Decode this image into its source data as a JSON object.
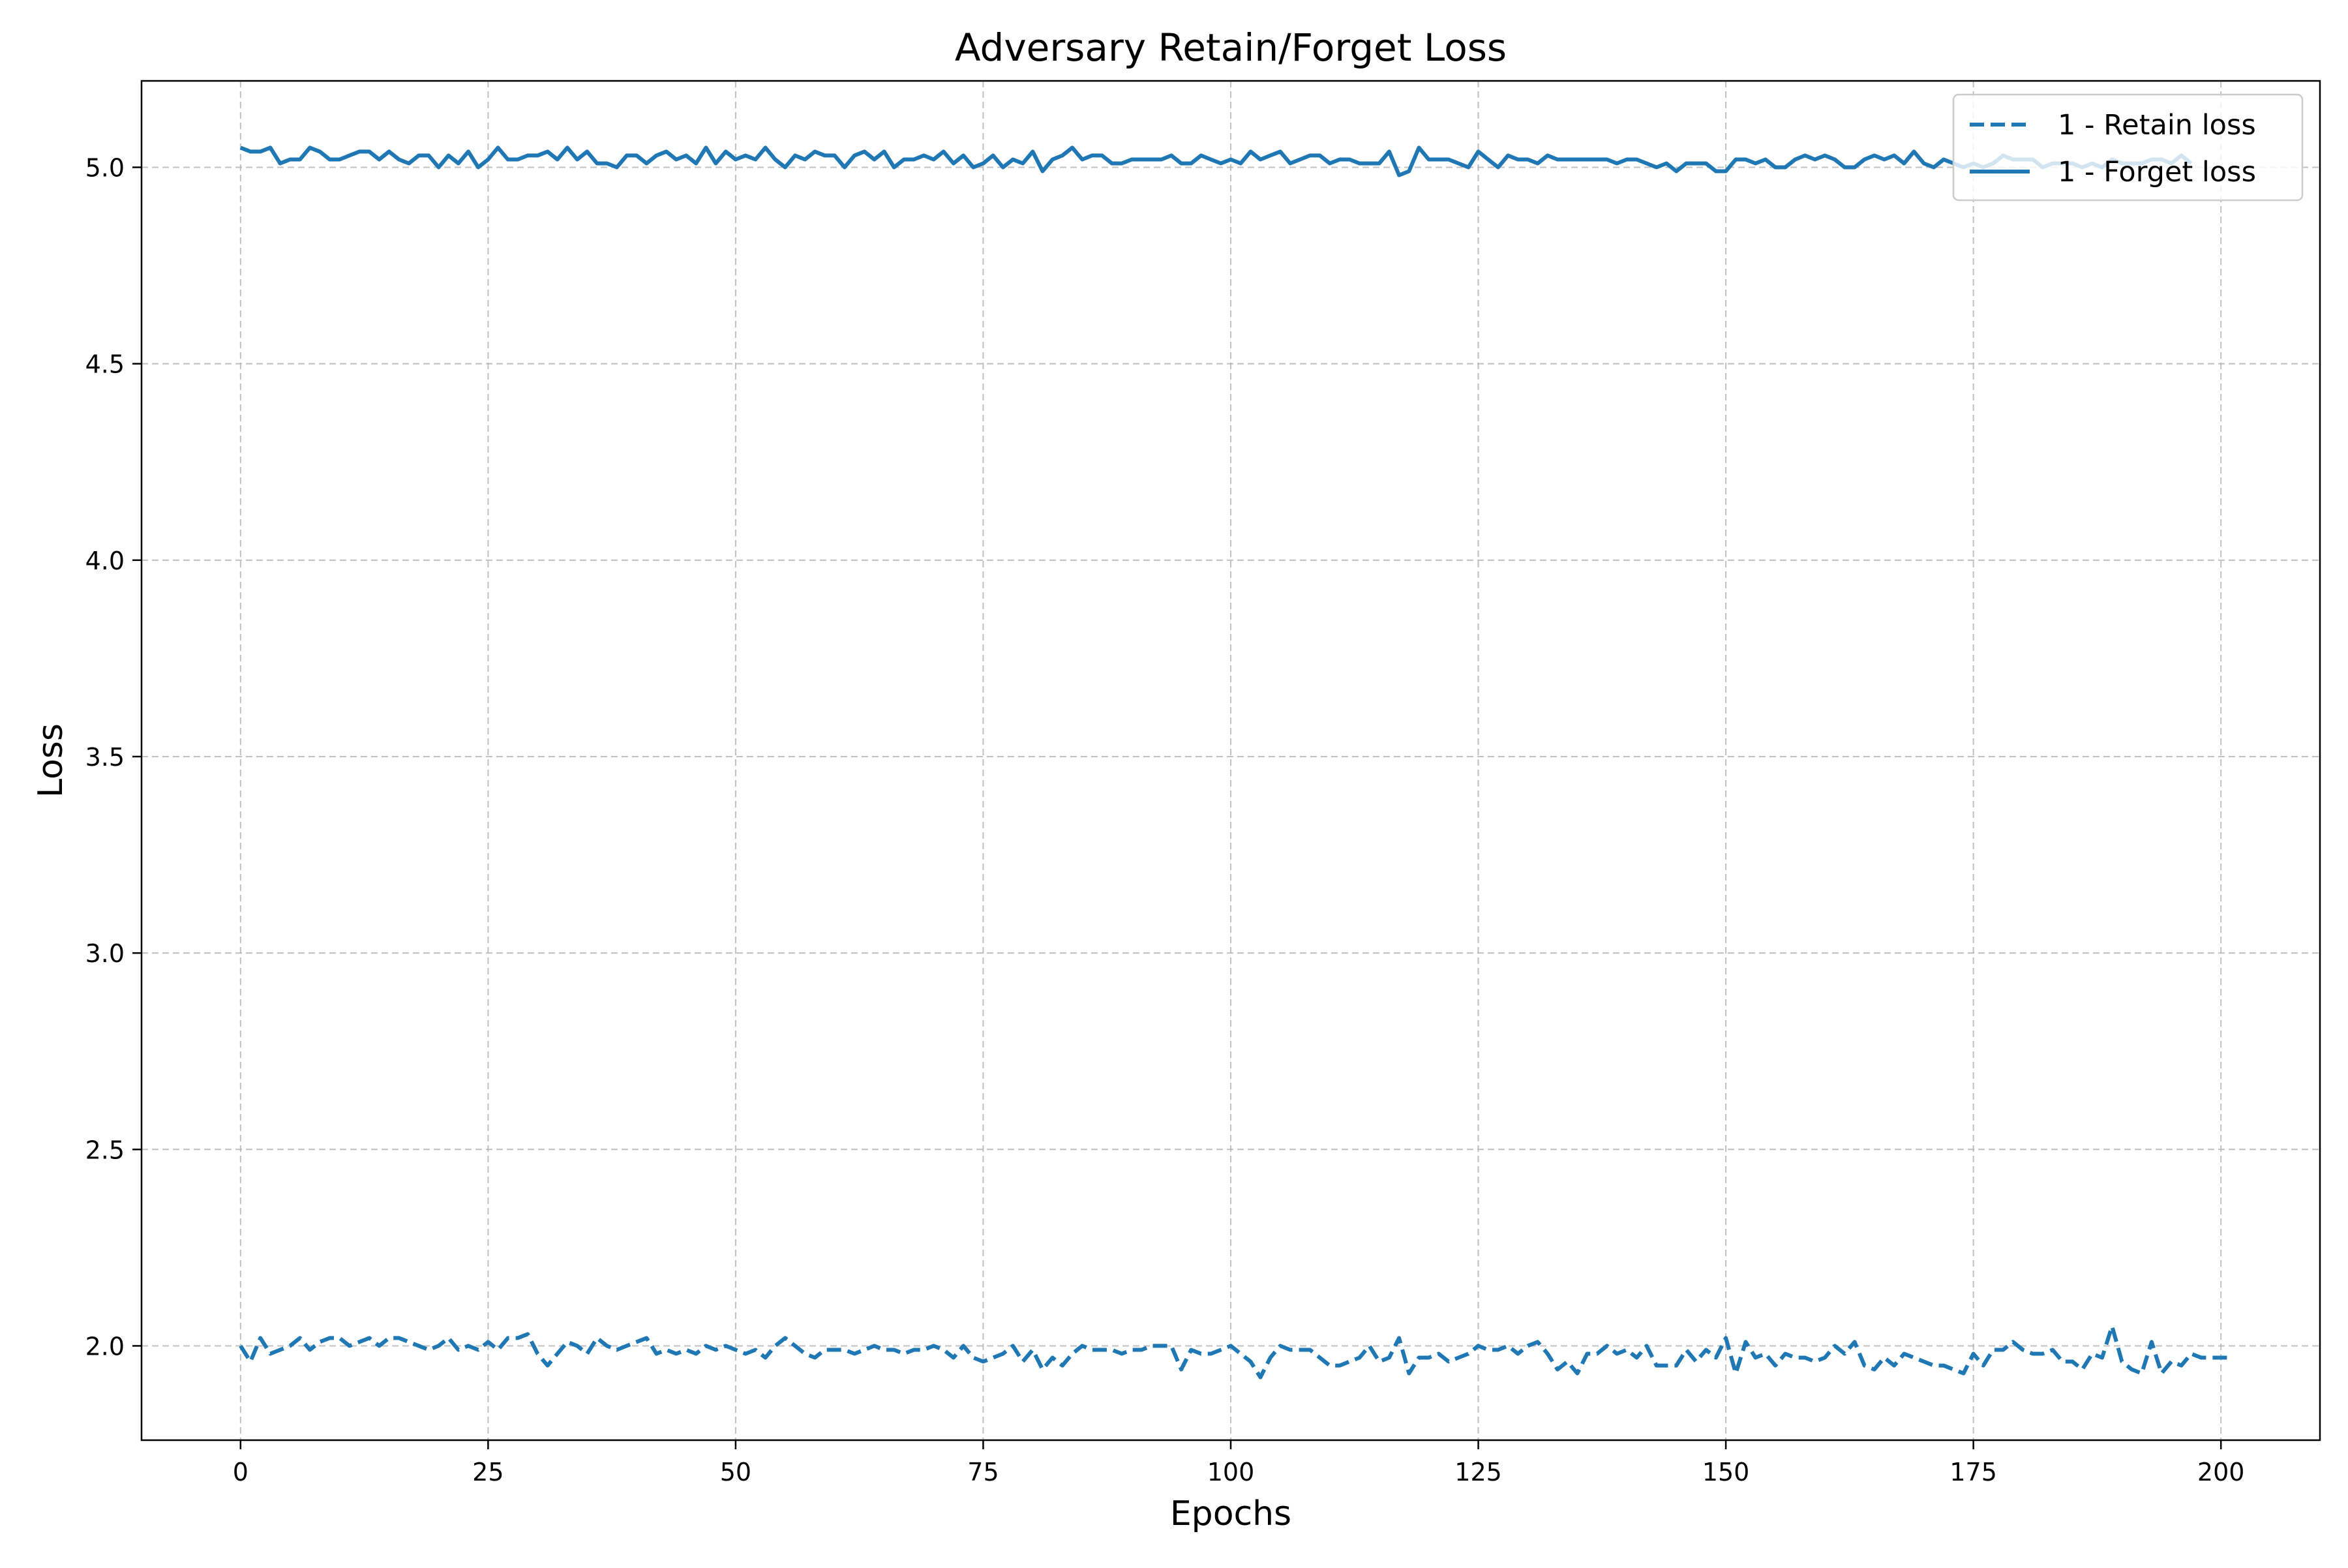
{
  "chart_data": {
    "type": "line",
    "title": "Adversary Retain/Forget Loss",
    "xlabel": "Epochs",
    "ylabel": "Loss",
    "xlim": [
      -10,
      210
    ],
    "ylim": [
      1.76,
      5.22
    ],
    "xticks": [
      0,
      25,
      50,
      75,
      100,
      125,
      150,
      175,
      200
    ],
    "yticks": [
      2.0,
      2.5,
      3.0,
      3.5,
      4.0,
      4.5,
      5.0
    ],
    "ytick_labels": [
      "2.0",
      "2.5",
      "3.0",
      "3.5",
      "4.0",
      "4.5",
      "5.0"
    ],
    "grid": true,
    "legend_position": "top-right",
    "color": "#1f77b4",
    "series": [
      {
        "name": "1 - Retain loss",
        "style": "dashed",
        "x_start": 0,
        "x_step": 1,
        "values": [
          2.0,
          1.96,
          2.02,
          1.98,
          1.99,
          2.0,
          2.02,
          1.99,
          2.01,
          2.02,
          2.02,
          2.0,
          2.01,
          2.02,
          2.0,
          2.02,
          2.02,
          2.01,
          2.0,
          1.99,
          2.0,
          2.02,
          1.99,
          2.0,
          1.99,
          2.01,
          1.99,
          2.02,
          2.02,
          2.03,
          1.98,
          1.95,
          1.98,
          2.01,
          2.0,
          1.98,
          2.02,
          2.0,
          1.99,
          2.0,
          2.01,
          2.02,
          1.98,
          1.99,
          1.98,
          1.99,
          1.98,
          2.0,
          1.99,
          2.0,
          1.99,
          1.98,
          1.99,
          1.97,
          2.0,
          2.02,
          2.0,
          1.98,
          1.97,
          1.99,
          1.99,
          1.99,
          1.98,
          1.99,
          2.0,
          1.99,
          1.99,
          1.98,
          1.99,
          1.99,
          2.0,
          1.99,
          1.97,
          2.0,
          1.97,
          1.96,
          1.97,
          1.98,
          2.0,
          1.96,
          1.99,
          1.94,
          1.97,
          1.95,
          1.98,
          2.0,
          1.99,
          1.99,
          1.99,
          1.98,
          1.99,
          1.99,
          2.0,
          2.0,
          2.0,
          1.94,
          1.99,
          1.98,
          1.98,
          1.99,
          2.0,
          1.98,
          1.96,
          1.92,
          1.97,
          2.0,
          1.99,
          1.99,
          1.99,
          1.97,
          1.95,
          1.95,
          1.96,
          1.97,
          2.0,
          1.96,
          1.97,
          2.02,
          1.93,
          1.97,
          1.97,
          1.98,
          1.96,
          1.97,
          1.98,
          2.0,
          1.99,
          1.99,
          2.0,
          1.98,
          2.0,
          2.01,
          1.98,
          1.94,
          1.96,
          1.93,
          1.98,
          1.98,
          2.0,
          1.98,
          1.99,
          1.97,
          2.0,
          1.95,
          1.95,
          1.95,
          1.99,
          1.96,
          1.99,
          1.97,
          2.02,
          1.93,
          2.01,
          1.97,
          1.98,
          1.95,
          1.98,
          1.97,
          1.97,
          1.96,
          1.97,
          2.0,
          1.98,
          2.01,
          1.95,
          1.94,
          1.97,
          1.95,
          1.98,
          1.97,
          1.96,
          1.95,
          1.95,
          1.94,
          1.93,
          1.98,
          1.95,
          1.99,
          1.99,
          2.01,
          1.99,
          1.98,
          1.98,
          1.99,
          1.96,
          1.96,
          1.94,
          1.98,
          1.97,
          2.05,
          1.96,
          1.94,
          1.93,
          2.01,
          1.93,
          1.96,
          1.95,
          1.98,
          1.97,
          1.97,
          1.97,
          1.97
        ]
      },
      {
        "name": "1 - Forget loss",
        "style": "solid",
        "x_start": 0,
        "x_step": 1,
        "values": [
          5.05,
          5.04,
          5.04,
          5.05,
          5.01,
          5.02,
          5.02,
          5.05,
          5.04,
          5.02,
          5.02,
          5.03,
          5.04,
          5.04,
          5.02,
          5.04,
          5.02,
          5.01,
          5.03,
          5.03,
          5.0,
          5.03,
          5.01,
          5.04,
          5.0,
          5.02,
          5.05,
          5.02,
          5.02,
          5.03,
          5.03,
          5.04,
          5.02,
          5.05,
          5.02,
          5.04,
          5.01,
          5.01,
          5.0,
          5.03,
          5.03,
          5.01,
          5.03,
          5.04,
          5.02,
          5.03,
          5.01,
          5.05,
          5.01,
          5.04,
          5.02,
          5.03,
          5.02,
          5.05,
          5.02,
          5.0,
          5.03,
          5.02,
          5.04,
          5.03,
          5.03,
          5.0,
          5.03,
          5.04,
          5.02,
          5.04,
          5.0,
          5.02,
          5.02,
          5.03,
          5.02,
          5.04,
          5.01,
          5.03,
          5.0,
          5.01,
          5.03,
          5.0,
          5.02,
          5.01,
          5.04,
          4.99,
          5.02,
          5.03,
          5.05,
          5.02,
          5.03,
          5.03,
          5.01,
          5.01,
          5.02,
          5.02,
          5.02,
          5.02,
          5.03,
          5.01,
          5.01,
          5.03,
          5.02,
          5.01,
          5.02,
          5.01,
          5.04,
          5.02,
          5.03,
          5.04,
          5.01,
          5.02,
          5.03,
          5.03,
          5.01,
          5.02,
          5.02,
          5.01,
          5.01,
          5.01,
          5.04,
          4.98,
          4.99,
          5.05,
          5.02,
          5.02,
          5.02,
          5.01,
          5.0,
          5.04,
          5.02,
          5.0,
          5.03,
          5.02,
          5.02,
          5.01,
          5.03,
          5.02,
          5.02,
          5.02,
          5.02,
          5.02,
          5.02,
          5.01,
          5.02,
          5.02,
          5.01,
          5.0,
          5.01,
          4.99,
          5.01,
          5.01,
          5.01,
          4.99,
          4.99,
          5.02,
          5.02,
          5.01,
          5.02,
          5.0,
          5.0,
          5.02,
          5.03,
          5.02,
          5.03,
          5.02,
          5.0,
          5.0,
          5.02,
          5.03,
          5.02,
          5.03,
          5.01,
          5.04,
          5.01,
          5.0,
          5.02,
          5.01,
          5.0,
          5.01,
          5.0,
          5.01,
          5.03,
          5.02,
          5.02,
          5.02,
          5.0,
          5.01,
          5.01,
          5.01,
          5.0,
          5.01,
          5.0,
          5.02,
          5.01,
          5.01,
          5.01,
          5.02,
          5.02,
          5.01,
          5.03,
          5.01
        ]
      }
    ]
  }
}
